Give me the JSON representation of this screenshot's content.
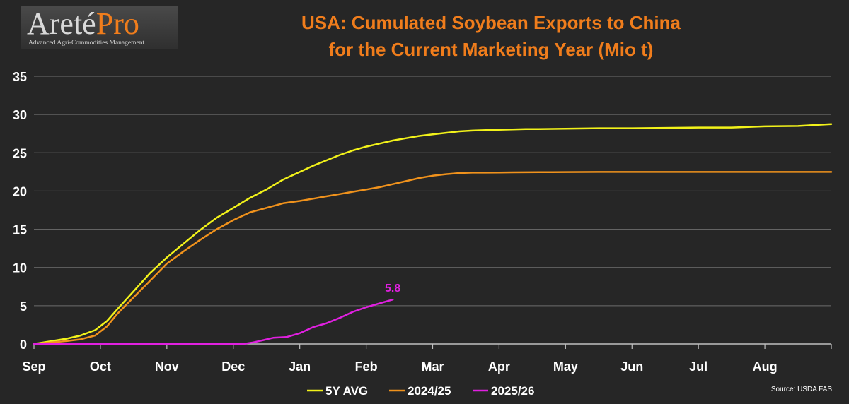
{
  "logo": {
    "word": "Areté",
    "accent": "Pro",
    "tagline": "Advanced Agri-Commodities Management"
  },
  "title_line1": "USA: Cumulated Soybean Exports to China",
  "title_line2": "for the Current Marketing Year (Mio t)",
  "source": "Source:  USDA FAS",
  "colors": {
    "background": "#262626",
    "title": "#f07d1c",
    "avg5y": "#f2f21a",
    "y2425": "#f0921c",
    "y2526": "#e020e0",
    "grid": "#6e6e6e"
  },
  "chart_data": {
    "type": "line",
    "xlabel": "",
    "ylabel": "",
    "ylim": [
      0,
      35
    ],
    "yticks": [
      "0",
      "5",
      "10",
      "15",
      "20",
      "25",
      "30",
      "35"
    ],
    "months": [
      "Sep",
      "Oct",
      "Nov",
      "Dec",
      "Jan",
      "Feb",
      "Mar",
      "Apr",
      "May",
      "Jun",
      "Jul",
      "Aug"
    ],
    "legend_position": "bottom",
    "grid": "horizontal",
    "annotation": {
      "series": "2025/26",
      "text": "5.8"
    },
    "series": [
      {
        "name": "5Y AVG",
        "color": "#f2f21a",
        "x": [
          0,
          0.5,
          0.7,
          0.92,
          1.1,
          1.25,
          1.5,
          1.75,
          2.0,
          2.25,
          2.5,
          2.75,
          3.0,
          3.25,
          3.5,
          3.75,
          4.0,
          4.2,
          4.4,
          4.6,
          4.8,
          5.0,
          5.2,
          5.4,
          5.6,
          5.8,
          6.0,
          6.2,
          6.4,
          6.6,
          6.8,
          7.0,
          7.2,
          7.4,
          7.6,
          7.8,
          8.0,
          8.5,
          9.0,
          9.5,
          10.0,
          10.5,
          11.0,
          11.5,
          11.9,
          12.0
        ],
        "y": [
          0,
          0.7,
          1.1,
          1.8,
          3.0,
          4.5,
          6.9,
          9.3,
          11.3,
          13.1,
          14.9,
          16.5,
          17.8,
          19.1,
          20.2,
          21.5,
          22.5,
          23.3,
          24.0,
          24.7,
          25.3,
          25.8,
          26.2,
          26.6,
          26.9,
          27.2,
          27.4,
          27.6,
          27.8,
          27.9,
          27.95,
          28.0,
          28.05,
          28.1,
          28.1,
          28.12,
          28.15,
          28.2,
          28.2,
          28.25,
          28.3,
          28.3,
          28.45,
          28.5,
          28.7,
          28.75
        ]
      },
      {
        "name": "2024/25",
        "color": "#f0921c",
        "x": [
          0,
          0.5,
          0.7,
          0.92,
          1.1,
          1.25,
          1.5,
          1.75,
          2.0,
          2.25,
          2.5,
          2.75,
          3.0,
          3.25,
          3.5,
          3.75,
          4.0,
          4.2,
          4.4,
          4.6,
          4.8,
          5.0,
          5.2,
          5.4,
          5.6,
          5.8,
          6.0,
          6.2,
          6.4,
          6.6,
          6.8,
          7.0,
          7.2,
          7.4,
          7.6,
          7.8,
          8.0,
          8.5,
          9.0,
          9.5,
          10.0,
          10.5,
          11.0,
          11.5,
          12.0
        ],
        "y": [
          0,
          0.4,
          0.6,
          1.1,
          2.3,
          3.9,
          6.1,
          8.3,
          10.5,
          12.1,
          13.6,
          15.0,
          16.2,
          17.2,
          17.8,
          18.4,
          18.7,
          19.0,
          19.3,
          19.6,
          19.9,
          20.2,
          20.5,
          20.9,
          21.3,
          21.7,
          22.0,
          22.2,
          22.35,
          22.4,
          22.4,
          22.42,
          22.44,
          22.45,
          22.46,
          22.47,
          22.48,
          22.5,
          22.5,
          22.5,
          22.5,
          22.5,
          22.5,
          22.5,
          22.5
        ]
      },
      {
        "name": "2025/26",
        "color": "#e020e0",
        "x": [
          0,
          1.0,
          2.0,
          3.0,
          3.15,
          3.3,
          3.45,
          3.6,
          3.8,
          4.0,
          4.2,
          4.4,
          4.6,
          4.8,
          5.0,
          5.2,
          5.4
        ],
        "y": [
          0,
          0,
          0,
          0,
          0,
          0.2,
          0.5,
          0.8,
          0.9,
          1.4,
          2.2,
          2.7,
          3.4,
          4.2,
          4.8,
          5.3,
          5.8
        ]
      }
    ]
  }
}
